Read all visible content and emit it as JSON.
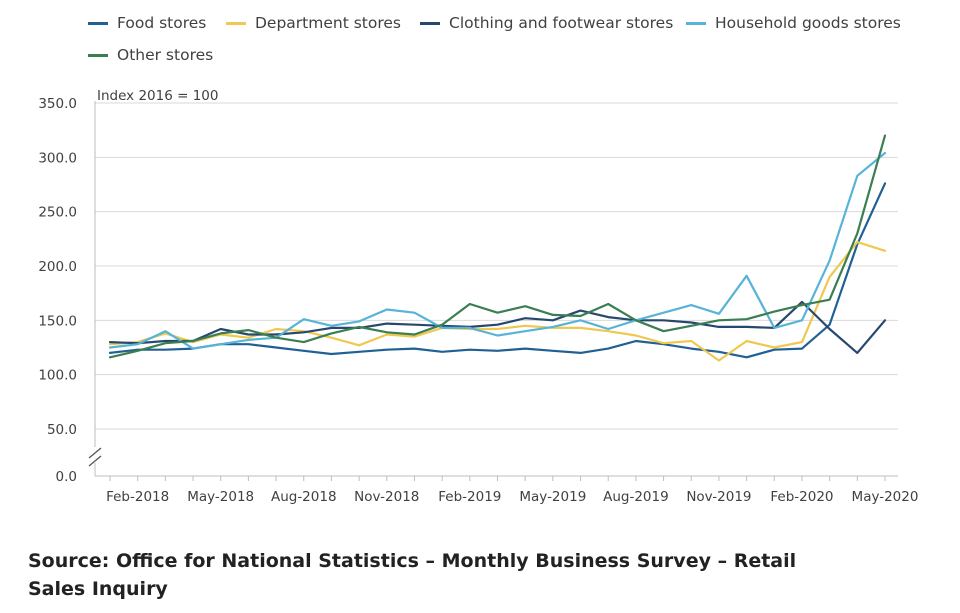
{
  "chart_data": {
    "type": "line",
    "title": "",
    "ylabel": "Index 2016 = 100",
    "xlabel": "",
    "ylim": [
      0,
      350
    ],
    "y_ticks": [
      "0.0",
      "50.0",
      "100.0",
      "150.0",
      "200.0",
      "250.0",
      "300.0",
      "350.0"
    ],
    "y_axis_break": true,
    "x": [
      "Jan-2018",
      "Feb-2018",
      "Mar-2018",
      "Apr-2018",
      "May-2018",
      "Jun-2018",
      "Jul-2018",
      "Aug-2018",
      "Sep-2018",
      "Oct-2018",
      "Nov-2018",
      "Dec-2018",
      "Jan-2019",
      "Feb-2019",
      "Mar-2019",
      "Apr-2019",
      "May-2019",
      "Jun-2019",
      "Jul-2019",
      "Aug-2019",
      "Sep-2019",
      "Oct-2019",
      "Nov-2019",
      "Dec-2019",
      "Jan-2020",
      "Feb-2020",
      "Mar-2020",
      "Apr-2020",
      "May-2020"
    ],
    "x_tick_labels": [
      "Feb-2018",
      "May-2018",
      "Aug-2018",
      "Nov-2018",
      "Feb-2019",
      "May-2019",
      "Aug-2019",
      "Nov-2019",
      "Feb-2020",
      "May-2020"
    ],
    "grid": true,
    "legend_position": "top",
    "series": [
      {
        "name": "Food stores",
        "color": "#206095",
        "values": [
          120,
          123,
          123,
          124,
          128,
          128,
          125,
          122,
          119,
          121,
          123,
          124,
          121,
          123,
          122,
          124,
          122,
          120,
          124,
          131,
          128,
          124,
          121,
          116,
          123,
          124,
          146,
          220,
          276
        ]
      },
      {
        "name": "Department stores",
        "color": "#f0c850",
        "values": [
          128,
          130,
          138,
          130,
          137,
          134,
          142,
          140,
          134,
          127,
          137,
          135,
          143,
          142,
          142,
          145,
          143,
          143,
          140,
          136,
          129,
          131,
          113,
          131,
          125,
          130,
          190,
          222,
          214
        ]
      },
      {
        "name": "Clothing and footwear stores",
        "color": "#27486e",
        "values": [
          130,
          129,
          131,
          131,
          142,
          137,
          137,
          139,
          143,
          143,
          147,
          146,
          145,
          144,
          146,
          152,
          150,
          159,
          153,
          150,
          150,
          148,
          144,
          144,
          143,
          167,
          142,
          120,
          150
        ]
      },
      {
        "name": "Household goods stores",
        "color": "#57b4d8",
        "values": [
          125,
          128,
          140,
          124,
          128,
          132,
          134,
          151,
          145,
          149,
          160,
          157,
          143,
          143,
          136,
          140,
          144,
          150,
          142,
          150,
          157,
          164,
          156,
          191,
          143,
          150,
          205,
          283,
          304
        ]
      },
      {
        "name": "Other stores",
        "color": "#3a7e52",
        "values": [
          116,
          122,
          129,
          131,
          138,
          141,
          134,
          130,
          138,
          144,
          139,
          137,
          146,
          165,
          157,
          163,
          155,
          154,
          165,
          150,
          140,
          145,
          150,
          151,
          158,
          164,
          169,
          230,
          320
        ]
      }
    ]
  },
  "source_text": "Source: Office for National Statistics – Monthly Business Survey – Retail Sales Inquiry"
}
